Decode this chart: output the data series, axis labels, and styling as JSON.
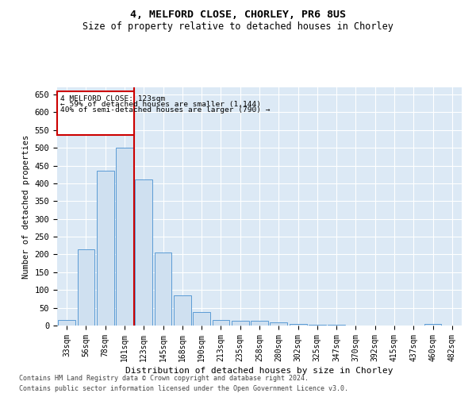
{
  "title1": "4, MELFORD CLOSE, CHORLEY, PR6 8US",
  "title2": "Size of property relative to detached houses in Chorley",
  "xlabel": "Distribution of detached houses by size in Chorley",
  "ylabel": "Number of detached properties",
  "footnote1": "Contains HM Land Registry data © Crown copyright and database right 2024.",
  "footnote2": "Contains public sector information licensed under the Open Government Licence v3.0.",
  "annotation_line1": "4 MELFORD CLOSE: 123sqm",
  "annotation_line2": "← 59% of detached houses are smaller (1,144)",
  "annotation_line3": "40% of semi-detached houses are larger (790) →",
  "bar_color": "#cfe0f0",
  "bar_edge_color": "#5b9bd5",
  "vline_color": "#cc0000",
  "box_edge_color": "#cc0000",
  "background_color": "#dce9f5",
  "categories": [
    "33sqm",
    "56sqm",
    "78sqm",
    "101sqm",
    "123sqm",
    "145sqm",
    "168sqm",
    "190sqm",
    "213sqm",
    "235sqm",
    "258sqm",
    "280sqm",
    "302sqm",
    "325sqm",
    "347sqm",
    "370sqm",
    "392sqm",
    "415sqm",
    "437sqm",
    "460sqm",
    "482sqm"
  ],
  "values": [
    15,
    215,
    435,
    500,
    410,
    205,
    85,
    38,
    15,
    13,
    13,
    10,
    5,
    3,
    2,
    1,
    1,
    0,
    0,
    5,
    1
  ],
  "vline_index": 4,
  "ylim": [
    0,
    670
  ],
  "yticks": [
    0,
    50,
    100,
    150,
    200,
    250,
    300,
    350,
    400,
    450,
    500,
    550,
    600,
    650
  ]
}
